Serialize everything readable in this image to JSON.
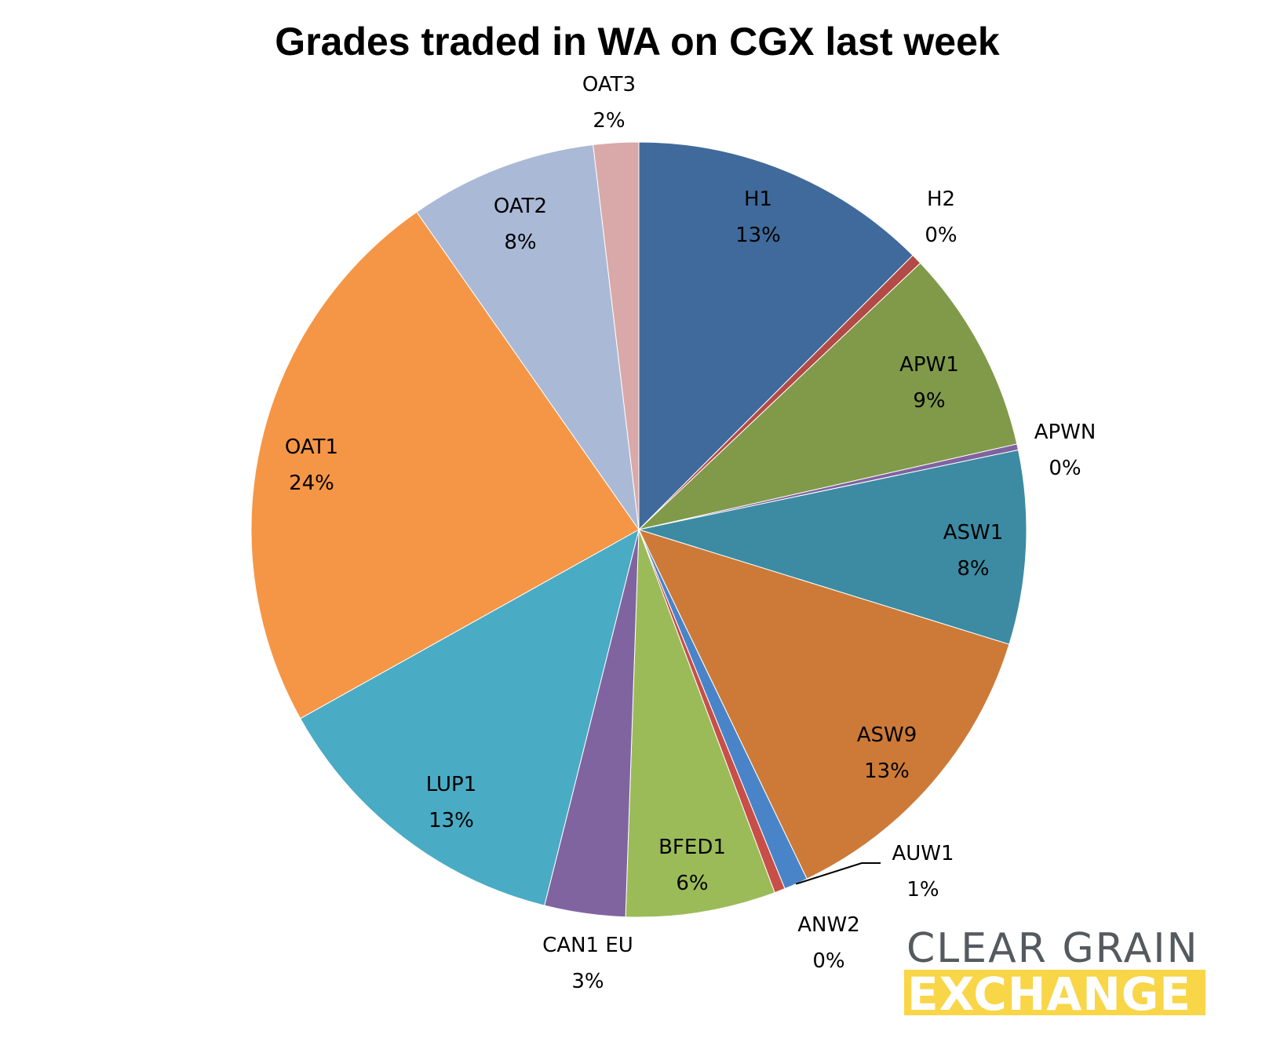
{
  "chart_data": {
    "type": "pie",
    "title": "Grades traded in WA on CGX last week",
    "start_angle_deg": 0,
    "direction": "clockwise",
    "slices": [
      {
        "label": "H1",
        "pct_label": "13%",
        "value": 12.6,
        "color": "#406a9b"
      },
      {
        "label": "H2",
        "pct_label": "0%",
        "value": 0.45,
        "color": "#b24a46"
      },
      {
        "label": "APW1",
        "pct_label": "9%",
        "value": 8.6,
        "color": "#809a4a"
      },
      {
        "label": "APWN",
        "pct_label": "0%",
        "value": 0.25,
        "color": "#7f63a0"
      },
      {
        "label": "ASW1",
        "pct_label": "8%",
        "value": 8.15,
        "color": "#3c8ba3"
      },
      {
        "label": "ASW9",
        "pct_label": "13%",
        "value": 13.2,
        "color": "#cd7a38"
      },
      {
        "label": "AUW1",
        "pct_label": "1%",
        "value": 1.0,
        "color": "#4a84c8"
      },
      {
        "label": "ANW2",
        "pct_label": "0%",
        "value": 0.45,
        "color": "#c84e48"
      },
      {
        "label": "BFED1",
        "pct_label": "6%",
        "value": 6.3,
        "color": "#9bbb58"
      },
      {
        "label": "CAN1 EU",
        "pct_label": "3%",
        "value": 3.4,
        "color": "#8064a0"
      },
      {
        "label": "LUP1",
        "pct_label": "13%",
        "value": 13.1,
        "color": "#4aabc4"
      },
      {
        "label": "OAT1",
        "pct_label": "24%",
        "value": 23.6,
        "color": "#f59646"
      },
      {
        "label": "OAT2",
        "pct_label": "8%",
        "value": 7.9,
        "color": "#aab9d6"
      },
      {
        "label": "OAT3",
        "pct_label": "2%",
        "value": 1.9,
        "color": "#d8a9a8"
      }
    ]
  },
  "logo": {
    "line1": "CLEAR GRAIN",
    "line2": "EXCHANGE",
    "line1_color": "#555a5e",
    "band_color": "#f8d648"
  }
}
